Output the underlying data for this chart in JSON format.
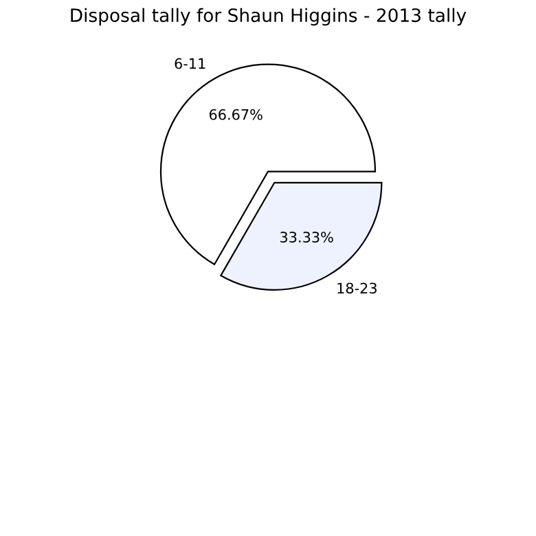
{
  "chart_data": {
    "type": "pie",
    "title": "Disposal tally for Shaun Higgins - 2013 tally",
    "categories": [
      "6-11",
      "18-23"
    ],
    "values": [
      66.67,
      33.33
    ],
    "value_labels": [
      "66.67%",
      "33.33%"
    ],
    "colors": [
      "#ffffff",
      "#eef2ff"
    ]
  }
}
